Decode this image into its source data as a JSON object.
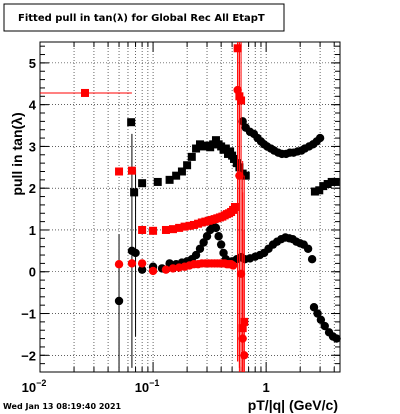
{
  "header": {
    "title": "Fitted pull in tan(λ) for Global Rec All EtapT"
  },
  "footer": {
    "timestamp": "Wed Jan 13 08:19:40 2021"
  },
  "chart_data": {
    "type": "scatter",
    "title": "Fitted pull in tan(λ) for Global Rec All EtapT",
    "xlabel": "pT/|q| (GeV/c)",
    "ylabel": "pull in tan(λ)",
    "xscale": "log",
    "xlim": [
      0.01,
      4.5
    ],
    "ylim": [
      -2.4,
      5.5
    ],
    "x_tick_labels": [
      {
        "value": 0.01,
        "label": "10",
        "exp": "−2"
      },
      {
        "value": 0.1,
        "label": "10",
        "exp": "−1"
      },
      {
        "value": 1,
        "label": "1",
        "exp": ""
      }
    ],
    "y_ticks": [
      -2,
      -1,
      0,
      1,
      2,
      3,
      4,
      5
    ],
    "y_tick_labels": [
      "−2",
      "−1",
      "0",
      "1",
      "2",
      "3",
      "4",
      "5"
    ],
    "grid": true,
    "colors": {
      "black": "#000000",
      "red": "#ff0000"
    },
    "series": [
      {
        "marker": "square",
        "color": "#000000",
        "points": [
          {
            "x": 0.064,
            "y": 3.58
          },
          {
            "x": 0.068,
            "y": 1.9
          },
          {
            "x": 0.08,
            "y": 2.12
          },
          {
            "x": 0.11,
            "y": 2.15
          },
          {
            "x": 0.14,
            "y": 2.2
          },
          {
            "x": 0.16,
            "y": 2.3
          },
          {
            "x": 0.18,
            "y": 2.4
          },
          {
            "x": 0.2,
            "y": 2.55
          },
          {
            "x": 0.22,
            "y": 2.75
          },
          {
            "x": 0.24,
            "y": 2.95
          },
          {
            "x": 0.26,
            "y": 3.05
          },
          {
            "x": 0.28,
            "y": 3.0
          },
          {
            "x": 0.3,
            "y": 3.02
          },
          {
            "x": 0.32,
            "y": 2.98
          },
          {
            "x": 0.34,
            "y": 3.05
          },
          {
            "x": 0.36,
            "y": 3.15
          },
          {
            "x": 0.38,
            "y": 3.05
          },
          {
            "x": 0.4,
            "y": 3.0
          },
          {
            "x": 0.42,
            "y": 2.92
          },
          {
            "x": 0.44,
            "y": 2.95
          },
          {
            "x": 0.46,
            "y": 2.82
          },
          {
            "x": 0.48,
            "y": 2.88
          },
          {
            "x": 0.5,
            "y": 2.78
          },
          {
            "x": 0.52,
            "y": 2.7
          },
          {
            "x": 0.55,
            "y": 2.6
          },
          {
            "x": 0.58,
            "y": 2.5
          },
          {
            "x": 0.62,
            "y": 2.35
          },
          {
            "x": 0.66,
            "y": 2.3
          },
          {
            "x": 2.7,
            "y": 1.92
          },
          {
            "x": 2.95,
            "y": 1.95
          },
          {
            "x": 3.2,
            "y": 2.05
          },
          {
            "x": 3.5,
            "y": 2.1
          },
          {
            "x": 3.8,
            "y": 2.15
          },
          {
            "x": 4.1,
            "y": 2.15
          }
        ]
      },
      {
        "marker": "circle",
        "color": "#000000",
        "points": [
          {
            "x": 0.05,
            "y": -0.7,
            "yerr": 1.6
          },
          {
            "x": 0.065,
            "y": 0.5,
            "yerr": 2.8
          },
          {
            "x": 0.07,
            "y": 0.45,
            "yerr": 2.0
          },
          {
            "x": 0.08,
            "y": 0.05
          },
          {
            "x": 0.1,
            "y": 0.12
          },
          {
            "x": 0.12,
            "y": 0.08
          },
          {
            "x": 0.14,
            "y": 0.2
          },
          {
            "x": 0.16,
            "y": 0.18
          },
          {
            "x": 0.18,
            "y": 0.22
          },
          {
            "x": 0.2,
            "y": 0.25
          },
          {
            "x": 0.22,
            "y": 0.3
          },
          {
            "x": 0.24,
            "y": 0.4
          },
          {
            "x": 0.26,
            "y": 0.55
          },
          {
            "x": 0.28,
            "y": 0.7
          },
          {
            "x": 0.3,
            "y": 0.85
          },
          {
            "x": 0.32,
            "y": 1.0
          },
          {
            "x": 0.34,
            "y": 1.1
          },
          {
            "x": 0.36,
            "y": 1.05
          },
          {
            "x": 0.38,
            "y": 0.85
          },
          {
            "x": 0.4,
            "y": 0.65
          },
          {
            "x": 0.42,
            "y": 0.45
          },
          {
            "x": 0.44,
            "y": 0.3
          },
          {
            "x": 0.46,
            "y": 0.2
          },
          {
            "x": 0.5,
            "y": 0.25
          },
          {
            "x": 0.55,
            "y": 0.3
          },
          {
            "x": 0.6,
            "y": 0.35
          },
          {
            "x": 0.65,
            "y": 0.3
          },
          {
            "x": 0.62,
            "y": 3.6
          },
          {
            "x": 0.66,
            "y": 3.45
          },
          {
            "x": 0.72,
            "y": 3.35
          },
          {
            "x": 0.78,
            "y": 3.3
          },
          {
            "x": 0.84,
            "y": 3.2
          },
          {
            "x": 0.9,
            "y": 3.12
          },
          {
            "x": 0.96,
            "y": 3.05
          },
          {
            "x": 1.02,
            "y": 3.0
          },
          {
            "x": 1.1,
            "y": 2.95
          },
          {
            "x": 1.18,
            "y": 2.9
          },
          {
            "x": 1.28,
            "y": 2.85
          },
          {
            "x": 1.38,
            "y": 2.82
          },
          {
            "x": 1.5,
            "y": 2.82
          },
          {
            "x": 1.62,
            "y": 2.85
          },
          {
            "x": 1.75,
            "y": 2.85
          },
          {
            "x": 1.9,
            "y": 2.88
          },
          {
            "x": 2.05,
            "y": 2.9
          },
          {
            "x": 2.2,
            "y": 2.95
          },
          {
            "x": 2.4,
            "y": 3.0
          },
          {
            "x": 2.6,
            "y": 3.05
          },
          {
            "x": 2.8,
            "y": 3.12
          },
          {
            "x": 3.0,
            "y": 3.2
          },
          {
            "x": 0.72,
            "y": 0.32
          },
          {
            "x": 0.8,
            "y": 0.36
          },
          {
            "x": 0.88,
            "y": 0.4
          },
          {
            "x": 0.96,
            "y": 0.45
          },
          {
            "x": 1.05,
            "y": 0.55
          },
          {
            "x": 1.15,
            "y": 0.65
          },
          {
            "x": 1.25,
            "y": 0.72
          },
          {
            "x": 1.36,
            "y": 0.78
          },
          {
            "x": 1.48,
            "y": 0.82
          },
          {
            "x": 1.6,
            "y": 0.8
          },
          {
            "x": 1.72,
            "y": 0.78
          },
          {
            "x": 1.85,
            "y": 0.72
          },
          {
            "x": 2.0,
            "y": 0.68
          },
          {
            "x": 2.15,
            "y": 0.65
          },
          {
            "x": 2.35,
            "y": 0.55
          },
          {
            "x": 2.55,
            "y": 0.3
          },
          {
            "x": 2.65,
            "y": -0.85
          },
          {
            "x": 2.85,
            "y": -1.0
          },
          {
            "x": 3.05,
            "y": -1.15
          },
          {
            "x": 3.3,
            "y": -1.3
          },
          {
            "x": 3.6,
            "y": -1.45
          },
          {
            "x": 3.9,
            "y": -1.55
          },
          {
            "x": 4.2,
            "y": -1.6
          }
        ]
      },
      {
        "marker": "square",
        "color": "#ff0000",
        "points": [
          {
            "x": 0.025,
            "y": 4.28,
            "xerr_lo": 0.015,
            "xerr_hi": 0.04
          },
          {
            "x": 0.05,
            "y": 2.4
          },
          {
            "x": 0.065,
            "y": 2.42
          },
          {
            "x": 0.08,
            "y": 1.0
          },
          {
            "x": 0.1,
            "y": 0.98
          },
          {
            "x": 0.13,
            "y": 1.0
          },
          {
            "x": 0.15,
            "y": 1.02
          },
          {
            "x": 0.17,
            "y": 1.05
          },
          {
            "x": 0.19,
            "y": 1.08
          },
          {
            "x": 0.21,
            "y": 1.1
          },
          {
            "x": 0.23,
            "y": 1.12
          },
          {
            "x": 0.25,
            "y": 1.15
          },
          {
            "x": 0.27,
            "y": 1.18
          },
          {
            "x": 0.29,
            "y": 1.2
          },
          {
            "x": 0.31,
            "y": 1.22
          },
          {
            "x": 0.33,
            "y": 1.24
          },
          {
            "x": 0.35,
            "y": 1.26
          },
          {
            "x": 0.37,
            "y": 1.28
          },
          {
            "x": 0.39,
            "y": 1.3
          },
          {
            "x": 0.41,
            "y": 1.32
          },
          {
            "x": 0.43,
            "y": 1.35
          },
          {
            "x": 0.45,
            "y": 1.38
          },
          {
            "x": 0.47,
            "y": 1.4
          },
          {
            "x": 0.49,
            "y": 1.43
          },
          {
            "x": 0.51,
            "y": 1.48
          },
          {
            "x": 0.53,
            "y": 1.55
          },
          {
            "x": 0.56,
            "y": 5.35,
            "yerr": 7.5
          },
          {
            "x": 0.58,
            "y": 4.2,
            "yerr": 6.5
          },
          {
            "x": 0.6,
            "y": 4.1,
            "yerr": 6.0
          },
          {
            "x": 0.62,
            "y": -1.35,
            "yerr": 4.0
          },
          {
            "x": 0.64,
            "y": -1.2,
            "yerr": 3.5
          }
        ]
      },
      {
        "marker": "circle",
        "color": "#ff0000",
        "points": [
          {
            "x": 0.05,
            "y": 0.18
          },
          {
            "x": 0.065,
            "y": 0.2
          },
          {
            "x": 0.08,
            "y": 0.2
          },
          {
            "x": 0.1,
            "y": 0.02
          },
          {
            "x": 0.13,
            "y": 0.05
          },
          {
            "x": 0.15,
            "y": 0.08
          },
          {
            "x": 0.17,
            "y": 0.1
          },
          {
            "x": 0.19,
            "y": 0.12
          },
          {
            "x": 0.21,
            "y": 0.15
          },
          {
            "x": 0.23,
            "y": 0.18
          },
          {
            "x": 0.25,
            "y": 0.18
          },
          {
            "x": 0.27,
            "y": 0.2
          },
          {
            "x": 0.29,
            "y": 0.2
          },
          {
            "x": 0.31,
            "y": 0.2
          },
          {
            "x": 0.33,
            "y": 0.2
          },
          {
            "x": 0.35,
            "y": 0.2
          },
          {
            "x": 0.37,
            "y": 0.2
          },
          {
            "x": 0.39,
            "y": 0.2
          },
          {
            "x": 0.41,
            "y": 0.2
          },
          {
            "x": 0.43,
            "y": 0.2
          },
          {
            "x": 0.45,
            "y": 0.18
          },
          {
            "x": 0.47,
            "y": 0.18
          },
          {
            "x": 0.49,
            "y": 0.18
          },
          {
            "x": 0.51,
            "y": 0.15
          },
          {
            "x": 0.56,
            "y": 4.35,
            "yerr": 6.5
          },
          {
            "x": 0.58,
            "y": 2.3,
            "yerr": 5.0
          },
          {
            "x": 0.6,
            "y": -0.05,
            "yerr": 4.0
          },
          {
            "x": 0.62,
            "y": -1.6,
            "yerr": 3.5
          },
          {
            "x": 0.64,
            "y": -2.0,
            "yerr": 3.0
          }
        ]
      }
    ]
  }
}
